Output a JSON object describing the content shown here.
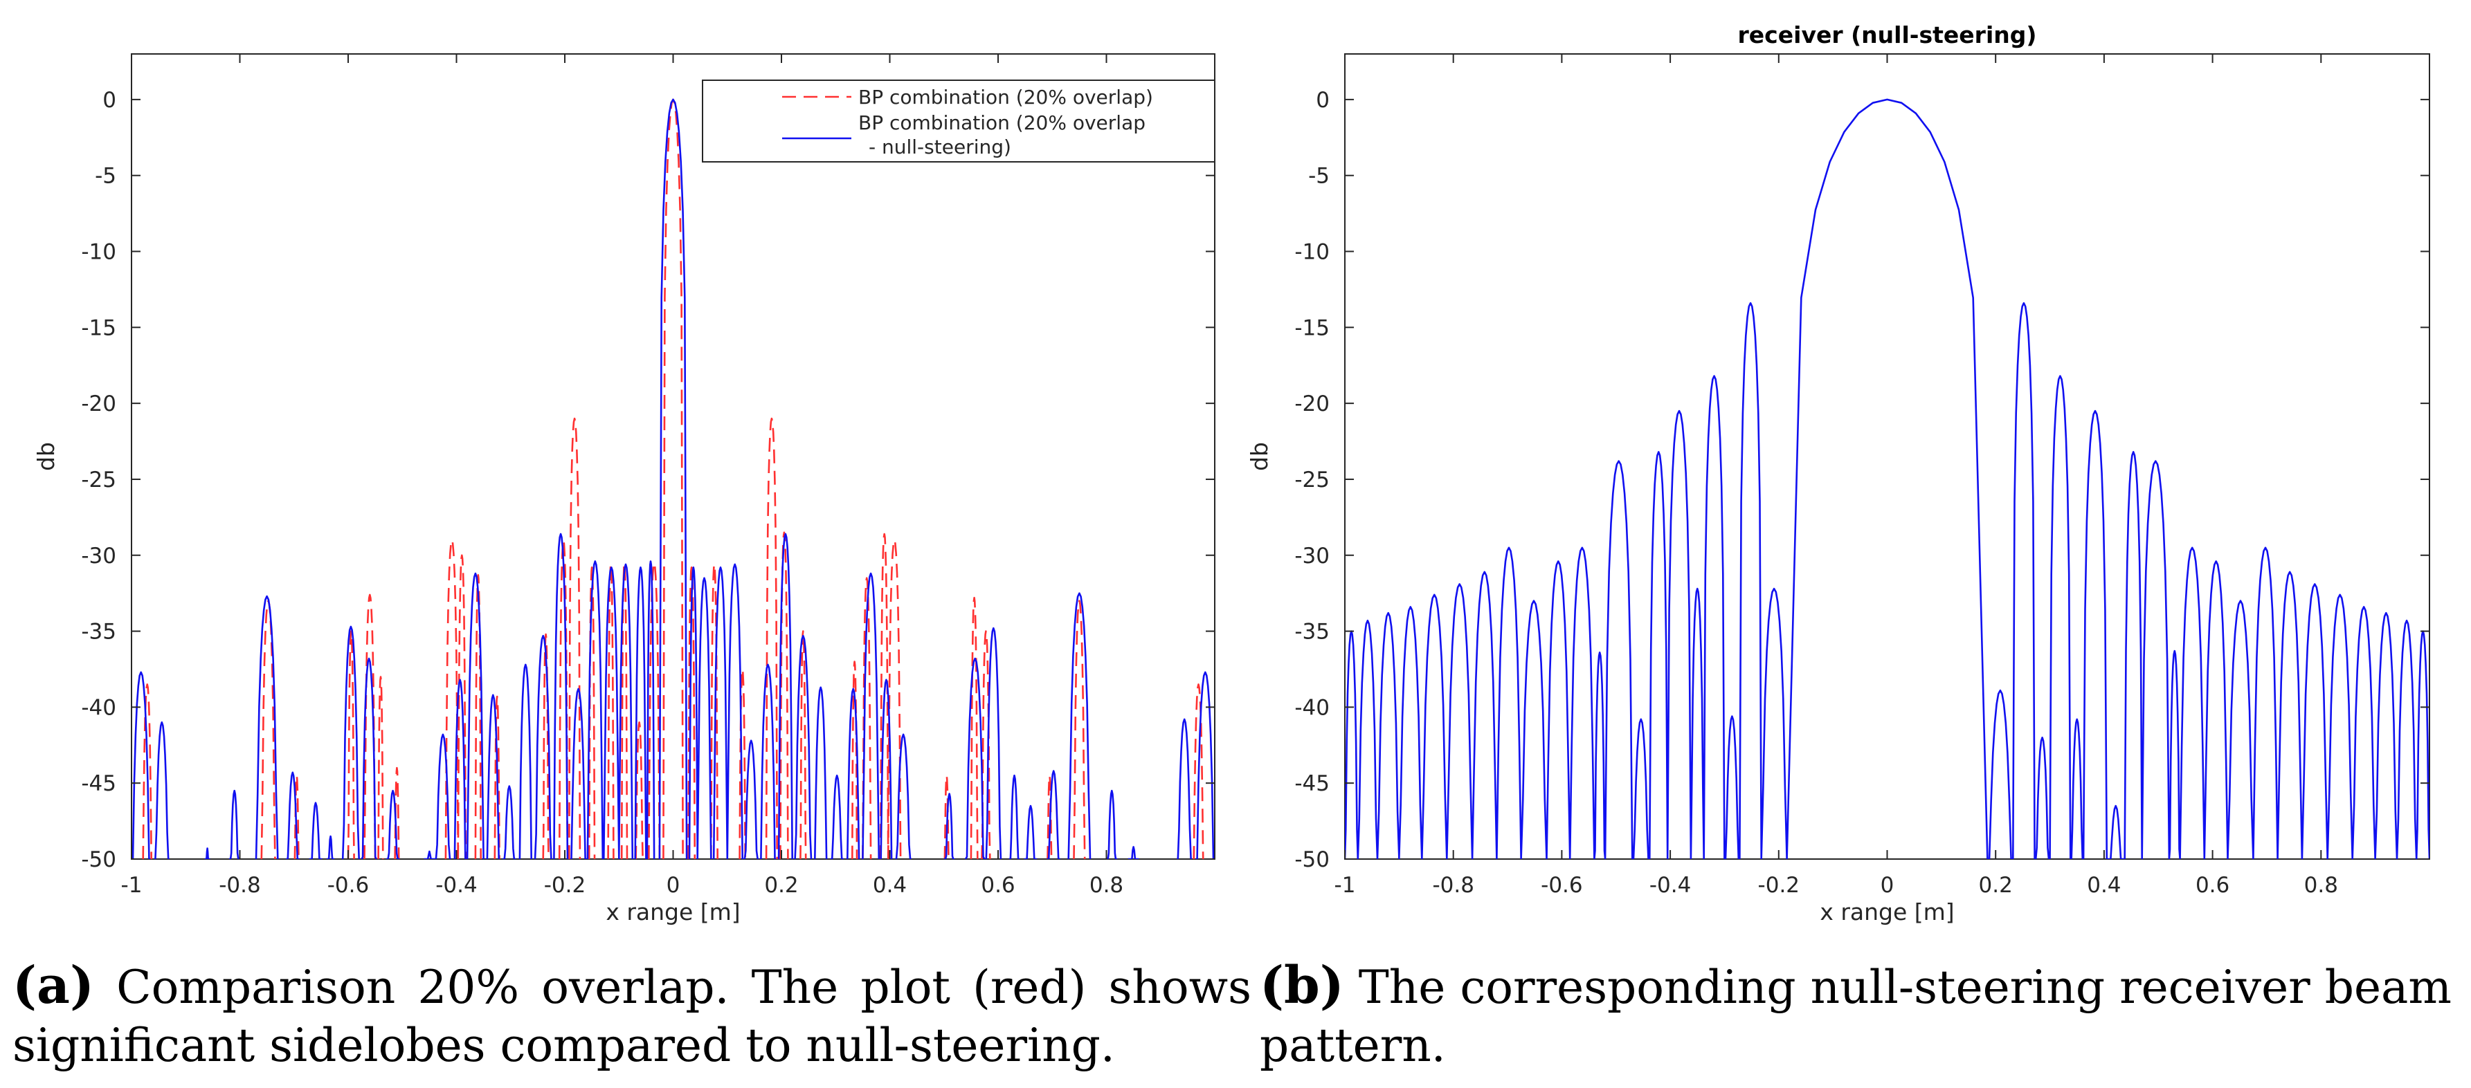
{
  "chart_data": [
    {
      "id": "a",
      "type": "line",
      "title": "",
      "xlabel": "x range [m]",
      "ylabel": "db",
      "xlim": [
        -1,
        1
      ],
      "ylim": [
        -50,
        3
      ],
      "xticks": [
        -1,
        -0.8,
        -0.6,
        -0.4,
        -0.2,
        0,
        0.2,
        0.4,
        0.6,
        0.8
      ],
      "xtick_labels": [
        "-1",
        "-0.8",
        "-0.6",
        "-0.4",
        "-0.2",
        "0",
        "0.2",
        "0.4",
        "0.6",
        "0.8"
      ],
      "yticks": [
        0,
        -5,
        -10,
        -15,
        -20,
        -25,
        -30,
        -35,
        -40,
        -45,
        -50
      ],
      "ytick_labels": [
        "0",
        "-5",
        "-10",
        "-15",
        "-20",
        "-25",
        "-30",
        "-35",
        "-40",
        "-45",
        "-50"
      ],
      "grid": false,
      "legend_position": "top-right",
      "legend": [
        "BP combination (20% overlap)",
        "BP combination (20% overlap",
        "- null-steering)"
      ],
      "series": [
        {
          "name": "BP combination (20% overlap)",
          "color": "#ff3030",
          "style": "dashed",
          "lobes": [
            [
              -0.98,
              -0.962,
              -38.5
            ],
            [
              -0.76,
              -0.735,
              -33
            ],
            [
              -0.7,
              -0.69,
              -44.5
            ],
            [
              -0.6,
              -0.589,
              -35
            ],
            [
              -0.57,
              -0.55,
              -32.6
            ],
            [
              -0.545,
              -0.535,
              -38
            ],
            [
              -0.515,
              -0.505,
              -44
            ],
            [
              -0.42,
              -0.397,
              -29
            ],
            [
              -0.397,
              -0.383,
              -30
            ],
            [
              -0.365,
              -0.355,
              -31.3
            ],
            [
              -0.33,
              -0.32,
              -39.3
            ],
            [
              -0.24,
              -0.23,
              -35.2
            ],
            [
              -0.21,
              -0.195,
              -29
            ],
            [
              -0.192,
              -0.172,
              -21
            ],
            [
              -0.155,
              -0.145,
              -30.8
            ],
            [
              -0.12,
              -0.11,
              -30.6
            ],
            [
              -0.095,
              -0.085,
              -30.5
            ],
            [
              -0.07,
              -0.055,
              -41
            ],
            [
              -0.045,
              -0.025,
              -30.5
            ],
            [
              -0.018,
              0.018,
              0
            ],
            [
              0.028,
              0.04,
              -30.8
            ],
            [
              0.07,
              0.082,
              -30.6
            ],
            [
              0.122,
              0.134,
              -37.5
            ],
            [
              0.172,
              0.192,
              -21
            ],
            [
              0.198,
              0.212,
              -28.5
            ],
            [
              0.235,
              0.245,
              -35
            ],
            [
              0.33,
              0.34,
              -37
            ],
            [
              0.35,
              0.365,
              -31.5
            ],
            [
              0.383,
              0.397,
              -28.6
            ],
            [
              0.397,
              0.42,
              -29
            ],
            [
              0.5,
              0.51,
              -44.5
            ],
            [
              0.55,
              0.562,
              -32.8
            ],
            [
              0.57,
              0.585,
              -35
            ],
            [
              0.69,
              0.7,
              -44.5
            ],
            [
              0.74,
              0.76,
              -33
            ],
            [
              0.96,
              0.98,
              -38.5
            ]
          ]
        },
        {
          "name": "BP combination (20% overlap - null-steering)",
          "color": "#1010f0",
          "style": "solid",
          "lobes": [
            [
              -1,
              -0.965,
              -37.7
            ],
            [
              -0.958,
              -0.93,
              -41
            ],
            [
              -0.865,
              -0.855,
              -49.3
            ],
            [
              -0.82,
              -0.8,
              -45.5
            ],
            [
              -0.77,
              -0.73,
              -32.7
            ],
            [
              -0.715,
              -0.69,
              -44.3
            ],
            [
              -0.672,
              -0.648,
              -46.3
            ],
            [
              -0.64,
              -0.625,
              -48.5
            ],
            [
              -0.61,
              -0.58,
              -34.7
            ],
            [
              -0.575,
              -0.548,
              -36.8
            ],
            [
              -0.53,
              -0.505,
              -45.5
            ],
            [
              -0.46,
              -0.44,
              -49.5
            ],
            [
              -0.44,
              -0.41,
              -41.8
            ],
            [
              -0.405,
              -0.382,
              -38.2
            ],
            [
              -0.38,
              -0.35,
              -31.2
            ],
            [
              -0.345,
              -0.32,
              -39.2
            ],
            [
              -0.315,
              -0.29,
              -45.2
            ],
            [
              -0.285,
              -0.26,
              -37.2
            ],
            [
              -0.255,
              -0.225,
              -35.3
            ],
            [
              -0.22,
              -0.195,
              -28.6
            ],
            [
              -0.19,
              -0.16,
              -38.8
            ],
            [
              -0.158,
              -0.13,
              -30.4
            ],
            [
              -0.128,
              -0.1,
              -30.8
            ],
            [
              -0.1,
              -0.075,
              -30.6
            ],
            [
              -0.07,
              -0.05,
              -30.8
            ],
            [
              -0.048,
              -0.035,
              -30.4
            ],
            [
              -0.025,
              0.025,
              0
            ],
            [
              0.03,
              0.045,
              -30.8
            ],
            [
              0.045,
              0.07,
              -31.5
            ],
            [
              0.075,
              0.1,
              -30.8
            ],
            [
              0.1,
              0.128,
              -30.6
            ],
            [
              0.13,
              0.158,
              -42.2
            ],
            [
              0.16,
              0.19,
              -37.2
            ],
            [
              0.195,
              0.22,
              -28.6
            ],
            [
              0.225,
              0.255,
              -35.3
            ],
            [
              0.26,
              0.285,
              -38.7
            ],
            [
              0.29,
              0.315,
              -44.5
            ],
            [
              0.32,
              0.345,
              -38.8
            ],
            [
              0.35,
              0.38,
              -31.2
            ],
            [
              0.382,
              0.405,
              -38.2
            ],
            [
              0.41,
              0.44,
              -41.8
            ],
            [
              0.5,
              0.52,
              -45.7
            ],
            [
              0.54,
              0.575,
              -36.8
            ],
            [
              0.578,
              0.605,
              -34.8
            ],
            [
              0.62,
              0.64,
              -44.5
            ],
            [
              0.648,
              0.672,
              -46.5
            ],
            [
              0.69,
              0.715,
              -44.2
            ],
            [
              0.73,
              0.77,
              -32.5
            ],
            [
              0.8,
              0.82,
              -45.5
            ],
            [
              0.84,
              0.86,
              -49.2
            ],
            [
              0.93,
              0.958,
              -40.8
            ],
            [
              0.965,
              1,
              -37.7
            ]
          ]
        }
      ]
    },
    {
      "id": "b",
      "type": "line",
      "title": "receiver (null-steering)",
      "xlabel": "x range [m]",
      "ylabel": "db",
      "xlim": [
        -1,
        1
      ],
      "ylim": [
        -50,
        3
      ],
      "xticks": [
        -1,
        -0.8,
        -0.6,
        -0.4,
        -0.2,
        0,
        0.2,
        0.4,
        0.6,
        0.8
      ],
      "xtick_labels": [
        "-1",
        "-0.8",
        "-0.6",
        "-0.4",
        "-0.2",
        "0",
        "0.2",
        "0.4",
        "0.6",
        "0.8"
      ],
      "yticks": [
        0,
        -5,
        -10,
        -15,
        -20,
        -25,
        -30,
        -35,
        -40,
        -45,
        -50
      ],
      "ytick_labels": [
        "0",
        "-5",
        "-10",
        "-15",
        "-20",
        "-25",
        "-30",
        "-35",
        "-40",
        "-45",
        "-50"
      ],
      "grid": false,
      "series": [
        {
          "name": "receiver (null-steering)",
          "color": "#1010f0",
          "style": "solid",
          "lobes": [
            [
              -1,
              -0.976,
              -35
            ],
            [
              -0.976,
              -0.94,
              -34.3
            ],
            [
              -0.94,
              -0.9,
              -33.8
            ],
            [
              -0.9,
              -0.858,
              -33.4
            ],
            [
              -0.858,
              -0.812,
              -32.6
            ],
            [
              -0.812,
              -0.765,
              -31.9
            ],
            [
              -0.765,
              -0.72,
              -31.1
            ],
            [
              -0.72,
              -0.675,
              -29.5
            ],
            [
              -0.675,
              -0.628,
              -33
            ],
            [
              -0.628,
              -0.585,
              -30.4
            ],
            [
              -0.585,
              -0.54,
              -29.5
            ],
            [
              -0.54,
              -0.52,
              -36.4
            ],
            [
              -0.52,
              -0.47,
              -23.8
            ],
            [
              -0.47,
              -0.438,
              -40.8
            ],
            [
              -0.438,
              -0.405,
              -23.2
            ],
            [
              -0.405,
              -0.362,
              -20.5
            ],
            [
              -0.362,
              -0.338,
              -32.2
            ],
            [
              -0.338,
              -0.3,
              -18.2
            ],
            [
              -0.3,
              -0.272,
              -40.6
            ],
            [
              -0.272,
              -0.232,
              -13.4
            ],
            [
              -0.232,
              -0.185,
              -32.2
            ],
            [
              -0.185,
              0.185,
              0
            ],
            [
              0.185,
              0.232,
              -38.9
            ],
            [
              0.232,
              0.272,
              -13.4
            ],
            [
              0.272,
              0.3,
              -42
            ],
            [
              0.3,
              0.338,
              -18.2
            ],
            [
              0.338,
              0.362,
              -40.8
            ],
            [
              0.362,
              0.405,
              -20.5
            ],
            [
              0.405,
              0.438,
              -46.5
            ],
            [
              0.438,
              0.47,
              -23.2
            ],
            [
              0.47,
              0.52,
              -23.8
            ],
            [
              0.52,
              0.54,
              -36.3
            ],
            [
              0.54,
              0.585,
              -29.5
            ],
            [
              0.585,
              0.628,
              -30.4
            ],
            [
              0.628,
              0.675,
              -33
            ],
            [
              0.675,
              0.72,
              -29.5
            ],
            [
              0.72,
              0.765,
              -31.1
            ],
            [
              0.765,
              0.812,
              -31.9
            ],
            [
              0.812,
              0.858,
              -32.6
            ],
            [
              0.858,
              0.9,
              -33.4
            ],
            [
              0.9,
              0.94,
              -33.8
            ],
            [
              0.94,
              0.976,
              -34.3
            ],
            [
              0.976,
              1,
              -35
            ]
          ]
        }
      ]
    }
  ],
  "captions": {
    "a_label": "(a)",
    "a_text": "Comparison 20% overlap. The plot (red) shows significant sidelobes compared to null-steering.",
    "b_label": "(b)",
    "b_text": "The corresponding null-steering receiver beam pattern."
  }
}
